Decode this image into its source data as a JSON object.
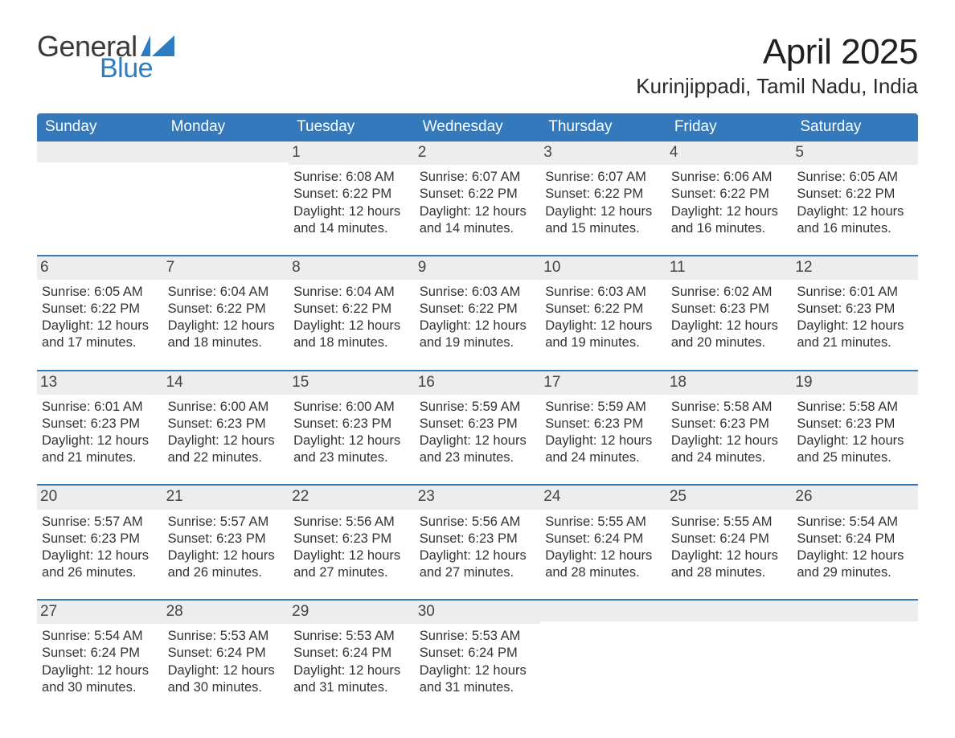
{
  "brand": {
    "line1": "General",
    "line2": "Blue",
    "flag_color": "#2f7dc1",
    "text_dark": "#3a3a3a"
  },
  "title": {
    "month": "April 2025",
    "location": "Kurinjippadi, Tamil Nadu, India"
  },
  "colors": {
    "header_bg": "#3379bc",
    "header_fg": "#ffffff",
    "row_divider": "#3379bc",
    "daynum_bg": "#ededed",
    "body_text": "#333333",
    "page_bg": "#ffffff"
  },
  "weekdays": [
    "Sunday",
    "Monday",
    "Tuesday",
    "Wednesday",
    "Thursday",
    "Friday",
    "Saturday"
  ],
  "labels": {
    "sunrise": "Sunrise:",
    "sunset": "Sunset:",
    "daylight": "Daylight:"
  },
  "start_weekday_index": 2,
  "days": [
    {
      "n": 1,
      "sunrise": "6:08 AM",
      "sunset": "6:22 PM",
      "daylight": "12 hours and 14 minutes."
    },
    {
      "n": 2,
      "sunrise": "6:07 AM",
      "sunset": "6:22 PM",
      "daylight": "12 hours and 14 minutes."
    },
    {
      "n": 3,
      "sunrise": "6:07 AM",
      "sunset": "6:22 PM",
      "daylight": "12 hours and 15 minutes."
    },
    {
      "n": 4,
      "sunrise": "6:06 AM",
      "sunset": "6:22 PM",
      "daylight": "12 hours and 16 minutes."
    },
    {
      "n": 5,
      "sunrise": "6:05 AM",
      "sunset": "6:22 PM",
      "daylight": "12 hours and 16 minutes."
    },
    {
      "n": 6,
      "sunrise": "6:05 AM",
      "sunset": "6:22 PM",
      "daylight": "12 hours and 17 minutes."
    },
    {
      "n": 7,
      "sunrise": "6:04 AM",
      "sunset": "6:22 PM",
      "daylight": "12 hours and 18 minutes."
    },
    {
      "n": 8,
      "sunrise": "6:04 AM",
      "sunset": "6:22 PM",
      "daylight": "12 hours and 18 minutes."
    },
    {
      "n": 9,
      "sunrise": "6:03 AM",
      "sunset": "6:22 PM",
      "daylight": "12 hours and 19 minutes."
    },
    {
      "n": 10,
      "sunrise": "6:03 AM",
      "sunset": "6:22 PM",
      "daylight": "12 hours and 19 minutes."
    },
    {
      "n": 11,
      "sunrise": "6:02 AM",
      "sunset": "6:23 PM",
      "daylight": "12 hours and 20 minutes."
    },
    {
      "n": 12,
      "sunrise": "6:01 AM",
      "sunset": "6:23 PM",
      "daylight": "12 hours and 21 minutes."
    },
    {
      "n": 13,
      "sunrise": "6:01 AM",
      "sunset": "6:23 PM",
      "daylight": "12 hours and 21 minutes."
    },
    {
      "n": 14,
      "sunrise": "6:00 AM",
      "sunset": "6:23 PM",
      "daylight": "12 hours and 22 minutes."
    },
    {
      "n": 15,
      "sunrise": "6:00 AM",
      "sunset": "6:23 PM",
      "daylight": "12 hours and 23 minutes."
    },
    {
      "n": 16,
      "sunrise": "5:59 AM",
      "sunset": "6:23 PM",
      "daylight": "12 hours and 23 minutes."
    },
    {
      "n": 17,
      "sunrise": "5:59 AM",
      "sunset": "6:23 PM",
      "daylight": "12 hours and 24 minutes."
    },
    {
      "n": 18,
      "sunrise": "5:58 AM",
      "sunset": "6:23 PM",
      "daylight": "12 hours and 24 minutes."
    },
    {
      "n": 19,
      "sunrise": "5:58 AM",
      "sunset": "6:23 PM",
      "daylight": "12 hours and 25 minutes."
    },
    {
      "n": 20,
      "sunrise": "5:57 AM",
      "sunset": "6:23 PM",
      "daylight": "12 hours and 26 minutes."
    },
    {
      "n": 21,
      "sunrise": "5:57 AM",
      "sunset": "6:23 PM",
      "daylight": "12 hours and 26 minutes."
    },
    {
      "n": 22,
      "sunrise": "5:56 AM",
      "sunset": "6:23 PM",
      "daylight": "12 hours and 27 minutes."
    },
    {
      "n": 23,
      "sunrise": "5:56 AM",
      "sunset": "6:23 PM",
      "daylight": "12 hours and 27 minutes."
    },
    {
      "n": 24,
      "sunrise": "5:55 AM",
      "sunset": "6:24 PM",
      "daylight": "12 hours and 28 minutes."
    },
    {
      "n": 25,
      "sunrise": "5:55 AM",
      "sunset": "6:24 PM",
      "daylight": "12 hours and 28 minutes."
    },
    {
      "n": 26,
      "sunrise": "5:54 AM",
      "sunset": "6:24 PM",
      "daylight": "12 hours and 29 minutes."
    },
    {
      "n": 27,
      "sunrise": "5:54 AM",
      "sunset": "6:24 PM",
      "daylight": "12 hours and 30 minutes."
    },
    {
      "n": 28,
      "sunrise": "5:53 AM",
      "sunset": "6:24 PM",
      "daylight": "12 hours and 30 minutes."
    },
    {
      "n": 29,
      "sunrise": "5:53 AM",
      "sunset": "6:24 PM",
      "daylight": "12 hours and 31 minutes."
    },
    {
      "n": 30,
      "sunrise": "5:53 AM",
      "sunset": "6:24 PM",
      "daylight": "12 hours and 31 minutes."
    }
  ]
}
